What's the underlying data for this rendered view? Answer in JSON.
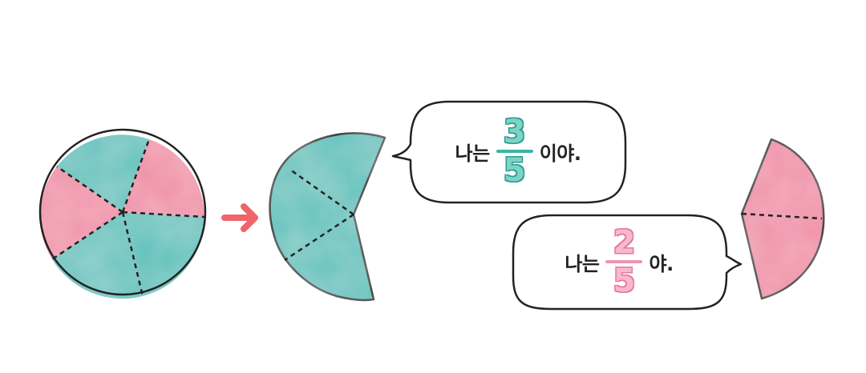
{
  "colors": {
    "teal": "#5ec2bd",
    "teal_light": "#8fd6c6",
    "pink": "#f08ea6",
    "pink_light": "#f6aec0",
    "arrow": "#f0646a",
    "outline": "#222222",
    "fraction_teal_stroke": "#2b9e8f",
    "fraction_pink_stroke": "#e8799b"
  },
  "icons": {
    "arrow": "arrow-right-icon"
  },
  "bubble_teal": {
    "prefix": "나는",
    "numerator": "3",
    "denominator": "5",
    "suffix": "이야."
  },
  "bubble_pink": {
    "prefix": "나는",
    "numerator": "2",
    "denominator": "5",
    "suffix": "야."
  }
}
